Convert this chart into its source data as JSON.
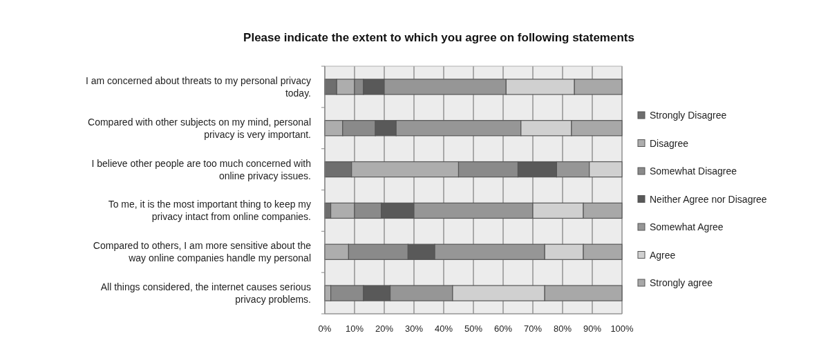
{
  "chart_data": {
    "type": "bar",
    "orientation": "horizontal",
    "stacked": true,
    "title": "Please indicate the extent to which you agree on following statements",
    "categories": [
      "I am concerned about threats to my personal privacy today.",
      "Compared with other subjects on my mind, personal privacy is very important.",
      "I believe other people are too much concerned with online privacy issues.",
      "To me, it is the most important thing to keep my privacy intact from online companies.",
      "Compared to others, I am more sensitive about the way online companies handle my personal",
      "All things considered, the internet causes serious privacy problems."
    ],
    "series": [
      {
        "name": "Strongly Disagree",
        "color": "#6e6e6e",
        "values": [
          4,
          0,
          9,
          2,
          0,
          0
        ]
      },
      {
        "name": "Disagree",
        "color": "#adadad",
        "values": [
          6,
          6,
          36,
          8,
          8,
          2
        ]
      },
      {
        "name": "Somewhat Disagree",
        "color": "#8a8a8a",
        "values": [
          3,
          11,
          20,
          9,
          20,
          11
        ]
      },
      {
        "name": "Neither Agree nor Disagree",
        "color": "#595959",
        "values": [
          7,
          7,
          13,
          11,
          9,
          9
        ]
      },
      {
        "name": "Somewhat Agree",
        "color": "#969696",
        "values": [
          41,
          42,
          11,
          40,
          37,
          21
        ]
      },
      {
        "name": "Agree",
        "color": "#d0d0d0",
        "values": [
          23,
          17,
          11,
          17,
          13,
          31
        ]
      },
      {
        "name": "Strongly agree",
        "color": "#a8a8a8",
        "values": [
          16,
          17,
          0,
          13,
          13,
          26
        ]
      }
    ],
    "xlim": [
      0,
      100
    ],
    "xticks": [
      {
        "value": 0,
        "label": "0%"
      },
      {
        "value": 10,
        "label": "10%"
      },
      {
        "value": 20,
        "label": "20%"
      },
      {
        "value": 30,
        "label": "30%"
      },
      {
        "value": 40,
        "label": "40%"
      },
      {
        "value": 50,
        "label": "50%"
      },
      {
        "value": 60,
        "label": "60%"
      },
      {
        "value": 70,
        "label": "70%"
      },
      {
        "value": 80,
        "label": "80%"
      },
      {
        "value": 90,
        "label": "90%"
      },
      {
        "value": 100,
        "label": "100%"
      }
    ],
    "grid": "x",
    "legend": "right"
  }
}
